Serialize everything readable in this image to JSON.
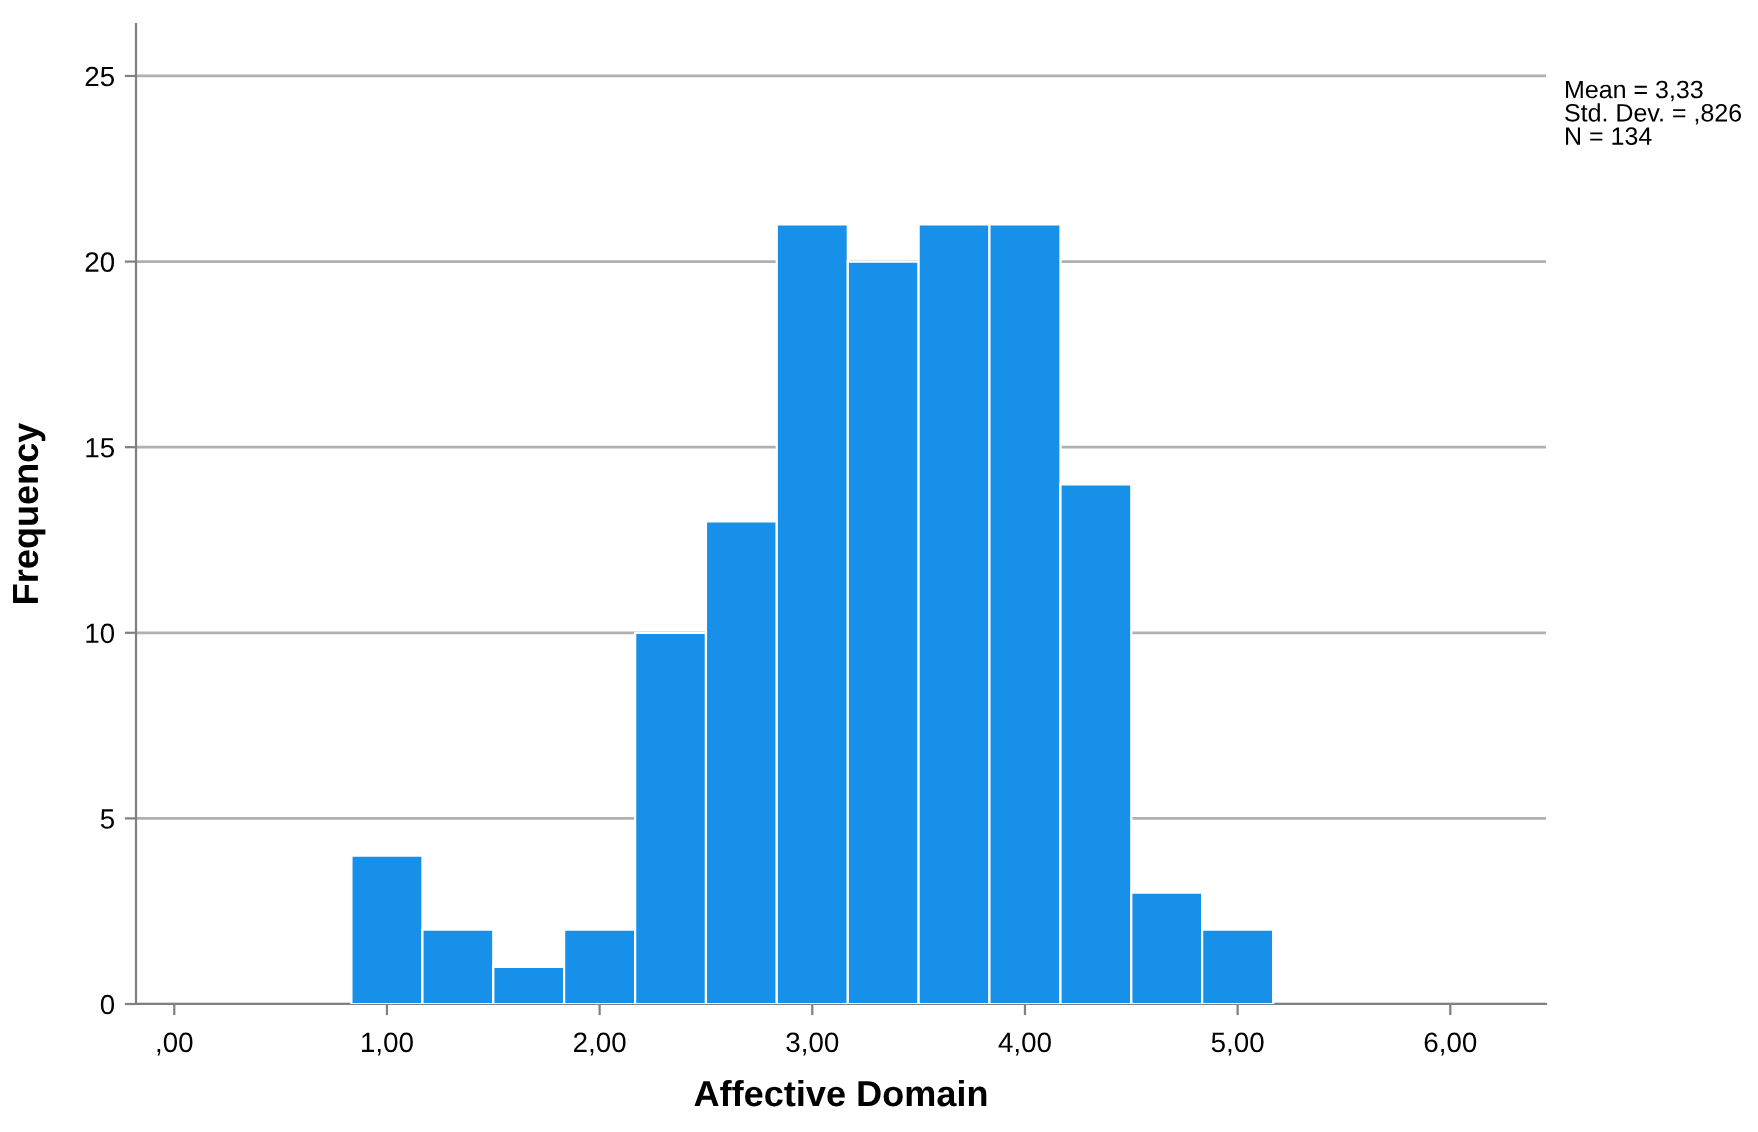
{
  "chart_data": {
    "type": "histogram",
    "xlabel": "Affective Domain",
    "ylabel": "Frequency",
    "bins": [
      0.833,
      1.167,
      1.5,
      1.833,
      2.167,
      2.5,
      2.833,
      3.167,
      3.5,
      3.833,
      4.167,
      4.5,
      4.833,
      5.167
    ],
    "values": [
      4,
      2,
      1,
      2,
      10,
      13,
      21,
      20,
      21,
      21,
      14,
      3,
      2
    ],
    "color": "#1690e8",
    "xlim": [
      -0.18,
      6.45
    ],
    "ylim": [
      0,
      26.4
    ],
    "xticks": [
      {
        "value": 0,
        "label": ",00"
      },
      {
        "value": 1,
        "label": "1,00"
      },
      {
        "value": 2,
        "label": "2,00"
      },
      {
        "value": 3,
        "label": "3,00"
      },
      {
        "value": 4,
        "label": "4,00"
      },
      {
        "value": 5,
        "label": "5,00"
      },
      {
        "value": 6,
        "label": "6,00"
      }
    ],
    "yticks": [
      0,
      5,
      10,
      15,
      20,
      25
    ],
    "grid": "y",
    "annotations": [
      "Mean = 3,33\nStd. Dev. = ,826\nN = 134"
    ]
  }
}
